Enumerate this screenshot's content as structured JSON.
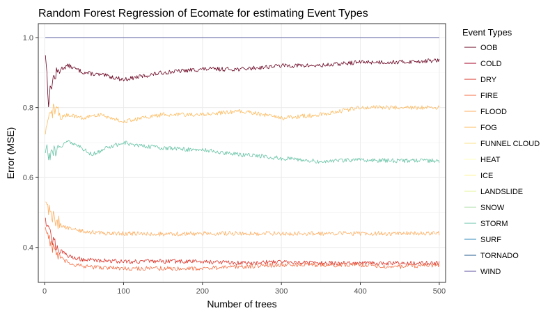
{
  "chart_data": {
    "type": "line",
    "title": "Random Forest Regression of Ecomate for estimating Event Types",
    "xlabel": "Number of trees",
    "ylabel": "Error (MSE)",
    "xlim": [
      -8,
      508
    ],
    "ylim": [
      0.3,
      1.04
    ],
    "x_ticks": [
      0,
      100,
      200,
      300,
      400,
      500
    ],
    "y_ticks": [
      0.4,
      0.6,
      0.8,
      1.0
    ],
    "y_tick_labels": [
      "0.4",
      "0.6",
      "0.8",
      "1.0"
    ],
    "grid": true,
    "legend": {
      "title": "Event Types",
      "position": "right"
    },
    "series": [
      {
        "name": "OOB",
        "color": "#67001f",
        "points": [
          [
            1,
            0.96
          ],
          [
            5,
            0.82
          ],
          [
            10,
            0.88
          ],
          [
            20,
            0.91
          ],
          [
            30,
            0.92
          ],
          [
            50,
            0.9
          ],
          [
            80,
            0.89
          ],
          [
            100,
            0.88
          ],
          [
            150,
            0.9
          ],
          [
            200,
            0.91
          ],
          [
            250,
            0.91
          ],
          [
            300,
            0.92
          ],
          [
            350,
            0.92
          ],
          [
            400,
            0.93
          ],
          [
            450,
            0.93
          ],
          [
            500,
            0.935
          ]
        ]
      },
      {
        "name": "COLD",
        "color": "#a50026",
        "points": [
          [
            1,
            1.0
          ],
          [
            500,
            1.0
          ]
        ]
      },
      {
        "name": "DRY",
        "color": "#d73027",
        "points": [
          [
            1,
            0.49
          ],
          [
            10,
            0.42
          ],
          [
            20,
            0.39
          ],
          [
            30,
            0.375
          ],
          [
            50,
            0.365
          ],
          [
            100,
            0.36
          ],
          [
            150,
            0.36
          ],
          [
            200,
            0.36
          ],
          [
            250,
            0.355
          ],
          [
            300,
            0.36
          ],
          [
            350,
            0.355
          ],
          [
            400,
            0.355
          ],
          [
            450,
            0.355
          ],
          [
            500,
            0.355
          ]
        ]
      },
      {
        "name": "FIRE",
        "color": "#f46d43",
        "points": [
          [
            1,
            0.46
          ],
          [
            10,
            0.4
          ],
          [
            20,
            0.37
          ],
          [
            30,
            0.355
          ],
          [
            50,
            0.345
          ],
          [
            100,
            0.34
          ],
          [
            150,
            0.34
          ],
          [
            200,
            0.34
          ],
          [
            250,
            0.345
          ],
          [
            300,
            0.35
          ],
          [
            350,
            0.35
          ],
          [
            400,
            0.35
          ],
          [
            450,
            0.345
          ],
          [
            500,
            0.35
          ]
        ]
      },
      {
        "name": "FLOOD",
        "color": "#fdae61",
        "points": [
          [
            1,
            0.53
          ],
          [
            10,
            0.49
          ],
          [
            20,
            0.465
          ],
          [
            30,
            0.455
          ],
          [
            50,
            0.445
          ],
          [
            80,
            0.44
          ],
          [
            100,
            0.44
          ],
          [
            150,
            0.438
          ],
          [
            200,
            0.44
          ],
          [
            300,
            0.44
          ],
          [
            400,
            0.44
          ],
          [
            500,
            0.44
          ]
        ]
      },
      {
        "name": "FOG",
        "color": "#fdbb5f",
        "points": [
          [
            1,
            0.72
          ],
          [
            5,
            0.76
          ],
          [
            10,
            0.79
          ],
          [
            15,
            0.8
          ],
          [
            20,
            0.77
          ],
          [
            30,
            0.78
          ],
          [
            50,
            0.77
          ],
          [
            70,
            0.78
          ],
          [
            100,
            0.76
          ],
          [
            150,
            0.78
          ],
          [
            200,
            0.78
          ],
          [
            250,
            0.79
          ],
          [
            300,
            0.77
          ],
          [
            350,
            0.78
          ],
          [
            400,
            0.8
          ],
          [
            450,
            0.8
          ],
          [
            500,
            0.8
          ]
        ]
      },
      {
        "name": "FUNNEL CLOUD",
        "color": "#fee08b",
        "points": [
          [
            1,
            1.0
          ],
          [
            500,
            1.0
          ]
        ]
      },
      {
        "name": "HEAT",
        "color": "#ffffbf",
        "points": [
          [
            1,
            1.0
          ],
          [
            500,
            1.0
          ]
        ]
      },
      {
        "name": "ICE",
        "color": "#fff3a0",
        "points": [
          [
            1,
            1.0
          ],
          [
            500,
            1.0
          ]
        ]
      },
      {
        "name": "LANDSLIDE",
        "color": "#e6f598",
        "points": [
          [
            1,
            1.0
          ],
          [
            500,
            1.0
          ]
        ]
      },
      {
        "name": "SNOW",
        "color": "#abdda4",
        "points": [
          [
            1,
            1.0
          ],
          [
            500,
            1.0
          ]
        ]
      },
      {
        "name": "STORM",
        "color": "#66c2a5",
        "points": [
          [
            1,
            0.69
          ],
          [
            5,
            0.66
          ],
          [
            10,
            0.67
          ],
          [
            20,
            0.685
          ],
          [
            30,
            0.705
          ],
          [
            40,
            0.695
          ],
          [
            50,
            0.68
          ],
          [
            60,
            0.665
          ],
          [
            80,
            0.685
          ],
          [
            100,
            0.7
          ],
          [
            120,
            0.69
          ],
          [
            150,
            0.685
          ],
          [
            180,
            0.68
          ],
          [
            200,
            0.68
          ],
          [
            230,
            0.67
          ],
          [
            250,
            0.665
          ],
          [
            280,
            0.66
          ],
          [
            300,
            0.655
          ],
          [
            330,
            0.65
          ],
          [
            350,
            0.645
          ],
          [
            380,
            0.65
          ],
          [
            400,
            0.65
          ],
          [
            450,
            0.648
          ],
          [
            500,
            0.648
          ]
        ]
      },
      {
        "name": "SURF",
        "color": "#3288bd",
        "points": [
          [
            1,
            1.0
          ],
          [
            500,
            1.0
          ]
        ]
      },
      {
        "name": "TORNADO",
        "color": "#235a8c",
        "points": [
          [
            1,
            1.0
          ],
          [
            500,
            1.0
          ]
        ]
      },
      {
        "name": "WIND",
        "color": "#5e4fa2",
        "points": [
          [
            1,
            1.0
          ],
          [
            500,
            1.0
          ]
        ]
      }
    ]
  }
}
